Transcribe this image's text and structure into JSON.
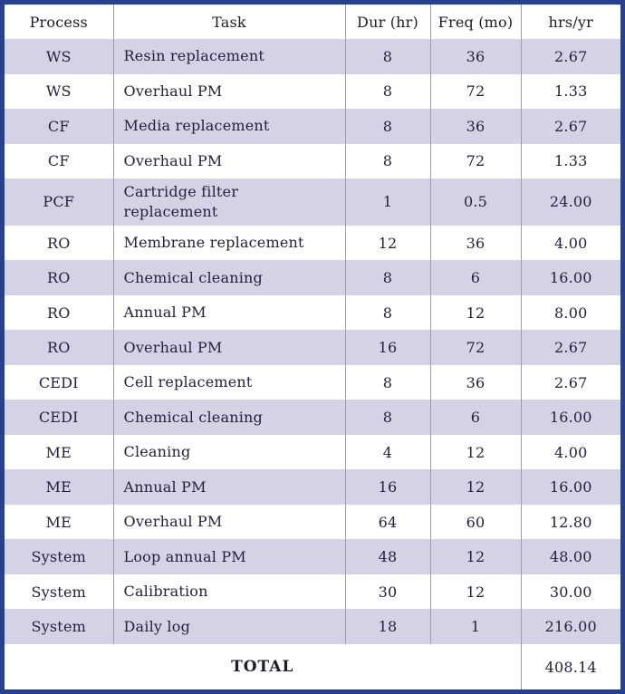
{
  "colors": {
    "frame_border": "#27418f",
    "row_alt_lavender": "#d4d3e6",
    "row_white": "#ffffff",
    "column_divider": "#9e9ea6",
    "text": "#22223a"
  },
  "table": {
    "columns": [
      "Process",
      "Task",
      "Dur (hr)",
      "Freq (mo)",
      "hrs/yr"
    ],
    "rows": [
      {
        "process": "WS",
        "task": "Resin replacement",
        "dur": "8",
        "freq": "36",
        "hrs": "2.67"
      },
      {
        "process": "WS",
        "task": "Overhaul PM",
        "dur": "8",
        "freq": "72",
        "hrs": "1.33"
      },
      {
        "process": "CF",
        "task": "Media replacement",
        "dur": "8",
        "freq": "36",
        "hrs": "2.67"
      },
      {
        "process": "CF",
        "task": "Overhaul PM",
        "dur": "8",
        "freq": "72",
        "hrs": "1.33"
      },
      {
        "process": "PCF",
        "task": "Cartridge filter\nreplacement",
        "dur": "1",
        "freq": "0.5",
        "hrs": "24.00"
      },
      {
        "process": "RO",
        "task": "Membrane replacement",
        "dur": "12",
        "freq": "36",
        "hrs": "4.00"
      },
      {
        "process": "RO",
        "task": "Chemical cleaning",
        "dur": "8",
        "freq": "6",
        "hrs": "16.00"
      },
      {
        "process": "RO",
        "task": "Annual PM",
        "dur": "8",
        "freq": "12",
        "hrs": "8.00"
      },
      {
        "process": "RO",
        "task": "Overhaul PM",
        "dur": "16",
        "freq": "72",
        "hrs": "2.67"
      },
      {
        "process": "CEDI",
        "task": "Cell replacement",
        "dur": "8",
        "freq": "36",
        "hrs": "2.67"
      },
      {
        "process": "CEDI",
        "task": "Chemical cleaning",
        "dur": "8",
        "freq": "6",
        "hrs": "16.00"
      },
      {
        "process": "ME",
        "task": "Cleaning",
        "dur": "4",
        "freq": "12",
        "hrs": "4.00"
      },
      {
        "process": "ME",
        "task": "Annual PM",
        "dur": "16",
        "freq": "12",
        "hrs": "16.00"
      },
      {
        "process": "ME",
        "task": "Overhaul PM",
        "dur": "64",
        "freq": "60",
        "hrs": "12.80"
      },
      {
        "process": "System",
        "task": "Loop annual PM",
        "dur": "48",
        "freq": "12",
        "hrs": "48.00"
      },
      {
        "process": "System",
        "task": "Calibration",
        "dur": "30",
        "freq": "12",
        "hrs": "30.00"
      },
      {
        "process": "System",
        "task": "Daily log",
        "dur": "18",
        "freq": "1",
        "hrs": "216.00"
      }
    ],
    "total_label": "TOTAL",
    "total_value": "408.14"
  }
}
